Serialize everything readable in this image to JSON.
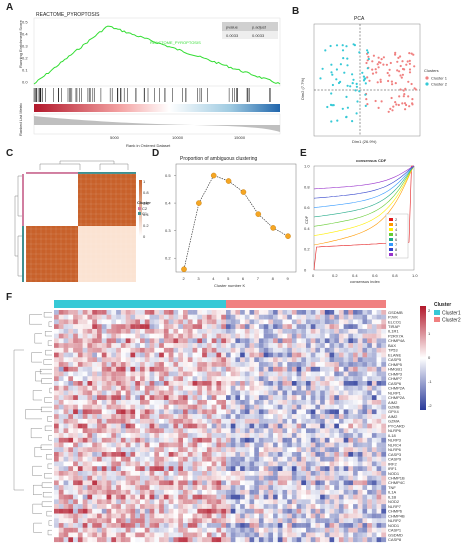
{
  "panel_letters": {
    "a": "A",
    "b": "B",
    "c": "C",
    "d": "D",
    "e": "E",
    "f": "F"
  },
  "colors": {
    "enrichment_line": "#33dd33",
    "cluster1": "#36c9d6",
    "cluster2": "#f08080",
    "heat_high": "#b2182b",
    "heat_low": "#2a3a9a",
    "consensus": "#d2691e",
    "dot_orange": "#f5a623"
  },
  "chart_data": [
    {
      "type": "line",
      "id": "A",
      "title": "REACTOME_PYROPTOSIS",
      "series_label": "REACTOME_PYROPTOSIS",
      "ylabel_top": "Running Enrichment Score",
      "ylabel_bottom": "Ranked List Metric",
      "xlabel": "Rank in Ordered Dataset",
      "x_ticks": [
        "5000",
        "10000",
        "15000"
      ],
      "y_ticks": [
        "0.5",
        "0.4",
        "0.3",
        "0.2",
        "0.1",
        "0.0"
      ],
      "table_headers": [
        "pvalue",
        "p.adjust"
      ],
      "table_values": [
        "0.0033",
        "0.0033"
      ]
    },
    {
      "type": "scatter",
      "id": "B",
      "title": "PCA",
      "xlabel": "Dim1 (26.9%)",
      "ylabel": "Dim2 (7.7%)",
      "legend_title": "Clusters",
      "legend": [
        "Cluster 1",
        "Cluster 2"
      ]
    },
    {
      "type": "heatmap",
      "id": "C",
      "legend_title": "Cluster",
      "legend": [
        "C2",
        "C1"
      ],
      "scale_ticks": [
        "1",
        "0.8",
        "0.6",
        "0.4",
        "0.2",
        "0"
      ]
    },
    {
      "type": "line",
      "id": "D",
      "title": "Proportion of ambiguous clustering",
      "xlabel": "Cluster number K",
      "categories": [
        "2",
        "3",
        "4",
        "5",
        "6",
        "7",
        "8",
        "9"
      ],
      "values": [
        0.16,
        0.4,
        0.5,
        0.48,
        0.44,
        0.36,
        0.31,
        0.28
      ],
      "ylim": [
        0.15,
        0.52
      ],
      "y_ticks": [
        "0.5",
        "0.4",
        "0.3",
        "0.2"
      ]
    },
    {
      "type": "line",
      "id": "E",
      "title": "consensus CDF",
      "xlabel": "consensus index",
      "ylabel": "CDF",
      "x_ticks": [
        "0",
        "0.2",
        "0.4",
        "0.6",
        "0.8",
        "1.0"
      ],
      "y_ticks": [
        "1.0",
        "0.8",
        "0.6",
        "0.4",
        "0.2",
        "0"
      ],
      "legend": [
        "2",
        "3",
        "4",
        "5",
        "6",
        "7",
        "8",
        "9"
      ]
    },
    {
      "type": "heatmap",
      "id": "F",
      "legend_title": "Cluster",
      "legend": [
        "Cluster1",
        "Cluster2"
      ],
      "scale_ticks": [
        "2",
        "1",
        "0",
        "-1",
        "-2"
      ],
      "genes": [
        "GSDMB",
        "PJVK",
        "ELCO1",
        "TIRAP",
        "IL1R1",
        "P2RX7A",
        "CHMP4A",
        "BAX",
        "TP53",
        "ELANE",
        "CASP5",
        "CHMP5",
        "HMGB1",
        "CHMP3",
        "CHMP7",
        "CASP6",
        "CHMP2A",
        "NLRP1",
        "CHMP2A",
        "AIM2",
        "GZMB",
        "GPX4",
        "AIM2",
        "GZMA",
        "PYCARD",
        "NLRP6",
        "IL18",
        "NLRP3",
        "NLRC4",
        "NLRP6",
        "CASP3",
        "CASP9",
        "IRF2",
        "IRF1",
        "NOD1",
        "CHMP1B",
        "CHMP4C",
        "TNF",
        "IL1A",
        "IL1B",
        "NOD2",
        "NLRP7",
        "CHMP6",
        "CHMP4B",
        "NLRP2",
        "NOD1",
        "CASP1",
        "GSDMD",
        "CASP8"
      ]
    }
  ]
}
